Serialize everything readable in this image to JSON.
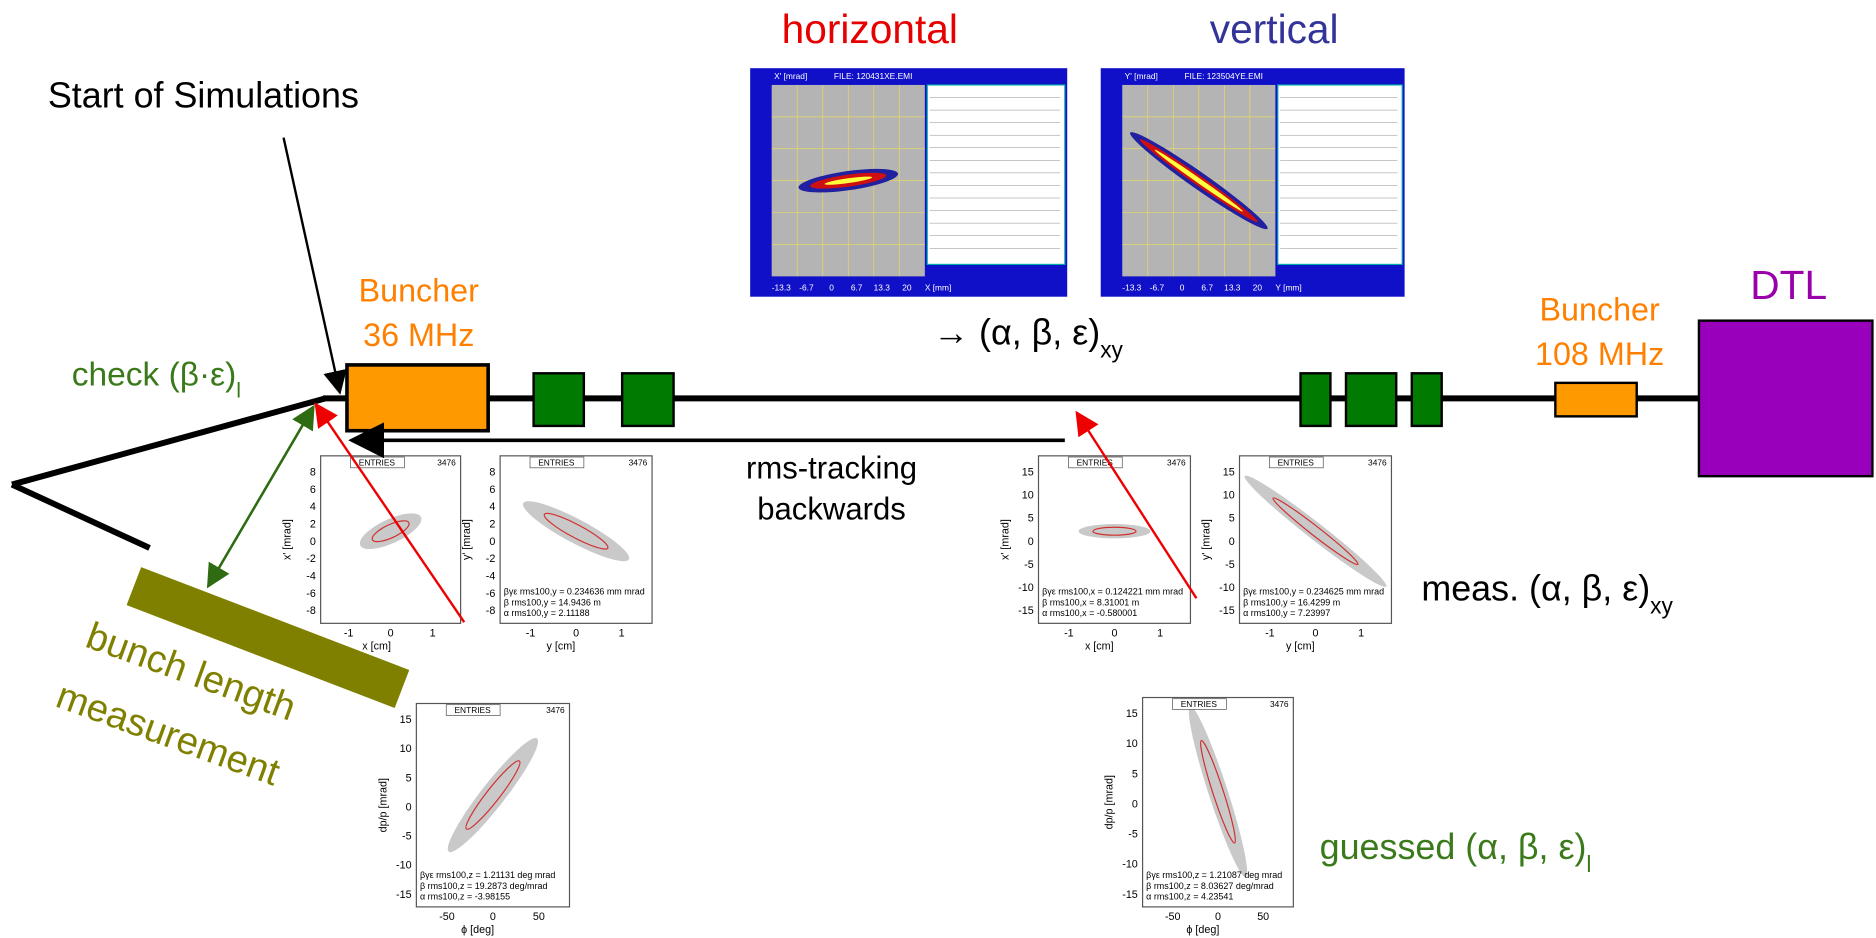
{
  "labels": {
    "horizontal": "horizontal",
    "vertical": "vertical",
    "start": "Start of Simulations",
    "buncher36": [
      "Buncher",
      "36 MHz"
    ],
    "buncher108": [
      "Buncher",
      "108 MHz"
    ],
    "dtl": "DTL",
    "xy_result": {
      "text": "→ (α, β, ε)",
      "sub": "xy"
    },
    "check": {
      "text": "check (β·ε)",
      "sub": "l"
    },
    "tracking": [
      "rms-tracking",
      "backwards"
    ],
    "bunch": [
      "bunch length",
      "measurement"
    ],
    "meas": {
      "text": "meas. (α, β, ε)",
      "sub": "xy"
    },
    "guessed": {
      "text": "guessed (α, β, ε)",
      "sub": "l"
    }
  },
  "emittance_images": [
    {
      "ylabel": "X' [mrad]",
      "file": "FILE: 120431XE.EMI",
      "xticks": [
        -13.3,
        -6.7,
        0,
        6.7,
        13.3,
        20
      ],
      "xlabel": "X [mm]"
    },
    {
      "ylabel": "Y' [mrad]",
      "file": "FILE: 123504YE.EMI",
      "xticks": [
        -13.3,
        -6.7,
        0,
        6.7,
        13.3,
        20
      ],
      "xlabel": "Y [mm]"
    }
  ],
  "plots": [
    {
      "header": "ENTRIES",
      "entries": 3476,
      "ylabel": "x' [mrad]",
      "xlabel": "x [cm]",
      "yticks": [
        8,
        6,
        4,
        2,
        0,
        -2,
        -4,
        -6,
        -8
      ],
      "xticks": [
        -1,
        0,
        1
      ],
      "stats": []
    },
    {
      "header": "ENTRIES",
      "entries": 3476,
      "ylabel": "y' [mrad]",
      "xlabel": "y [cm]",
      "yticks": [
        8,
        6,
        4,
        2,
        0,
        -2,
        -4,
        -6,
        -8
      ],
      "xticks": [
        -1,
        0,
        1
      ],
      "stats": [
        "βγε rms100,y = 0.234636 mm mrad",
        "β rms100,y = 14.9436 m",
        "α rms100,y = 2.11188"
      ]
    },
    {
      "header": "ENTRIES",
      "entries": 3476,
      "ylabel": "x' [mrad]",
      "xlabel": "x [cm]",
      "yticks": [
        15,
        10,
        5,
        0,
        -5,
        -10,
        -15
      ],
      "xticks": [
        -1,
        0,
        1
      ],
      "stats": [
        "βγε rms100,x = 0.124221 mm mrad",
        "β rms100,x = 8.31001 m",
        "α rms100,x = -0.580001"
      ]
    },
    {
      "header": "ENTRIES",
      "entries": 3476,
      "ylabel": "y' [mrad]",
      "xlabel": "y [cm]",
      "yticks": [
        15,
        10,
        5,
        0,
        -5,
        -10,
        -15
      ],
      "xticks": [
        -1,
        0,
        1
      ],
      "stats": [
        "βγε rms100,y = 0.234625 mm mrad",
        "β rms100,y = 16.4299 m",
        "α rms100,y = 7.23997"
      ]
    },
    {
      "header": "ENTRIES",
      "entries": 3476,
      "ylabel": "dp/p [mrad]",
      "xlabel": "ϕ [deg]",
      "yticks": [
        15,
        10,
        5,
        0,
        -5,
        -10,
        -15
      ],
      "xticks": [
        -50,
        0,
        50
      ],
      "stats": [
        "βγε rms100,z = 1.21131 deg mrad",
        "β rms100,z = 19.2873 deg/mrad",
        "α rms100,z = -3.98155"
      ]
    },
    {
      "header": "ENTRIES",
      "entries": 3476,
      "ylabel": "dp/p [mrad]",
      "xlabel": "ϕ [deg]",
      "yticks": [
        15,
        10,
        5,
        0,
        -5,
        -10,
        -15
      ],
      "xticks": [
        -50,
        0,
        50
      ],
      "stats": [
        "βγε rms100,z = 1.21087 deg mrad",
        "β rms100,z = 8.03627 deg/mrad",
        "α rms100,z = 4.23541"
      ]
    }
  ]
}
